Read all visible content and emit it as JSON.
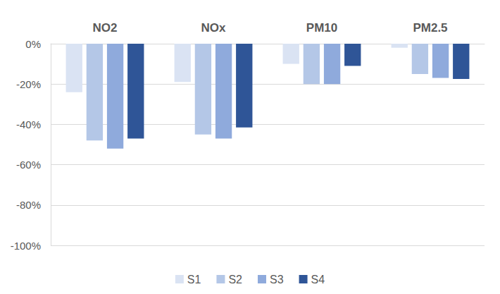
{
  "chart_data": {
    "type": "bar",
    "categories": [
      "NO2",
      "NOx",
      "PM10",
      "PM2.5"
    ],
    "series": [
      {
        "name": "S1",
        "color": "#dae3f3",
        "values": [
          -24,
          -19,
          -10,
          -2
        ]
      },
      {
        "name": "S2",
        "color": "#b4c7e7",
        "values": [
          -48,
          -45,
          -20,
          -15
        ]
      },
      {
        "name": "S3",
        "color": "#8faadc",
        "values": [
          -52,
          -47,
          -20,
          -17
        ]
      },
      {
        "name": "S4",
        "color": "#2f5597",
        "values": [
          -47,
          -41.5,
          -11,
          -17.5
        ]
      }
    ],
    "ylim": [
      -100,
      0
    ],
    "yticks": [
      {
        "value": -100,
        "label": "-100%"
      },
      {
        "value": -80,
        "label": "-80%"
      },
      {
        "value": -60,
        "label": "-60%"
      },
      {
        "value": -40,
        "label": "-40%"
      },
      {
        "value": -20,
        "label": "-20%"
      },
      {
        "value": 0,
        "label": "0%"
      }
    ],
    "grid": true,
    "legend": "bottom"
  }
}
